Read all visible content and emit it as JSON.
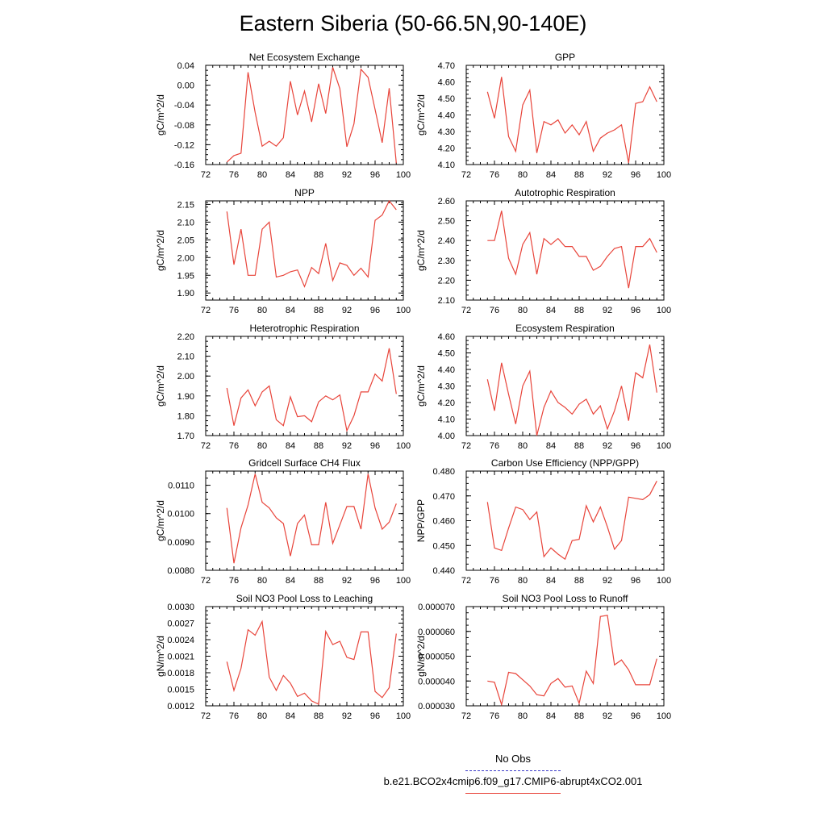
{
  "title": "Eastern Siberia (50-66.5N,90-140E)",
  "legend": {
    "obs_label": "No Obs",
    "obs_color": "#3b3bc8",
    "run_label": "b.e21.BCO2x4cmip6.f09_g17.CMIP6-abrupt4xCO2.001",
    "run_color": "#e8443a"
  },
  "chart_data": [
    {
      "type": "line",
      "title": "Net Ecosystem Exchange",
      "ylabel": "gC/m^2/d",
      "xlim": [
        72,
        100
      ],
      "ylim": [
        -0.16,
        0.04
      ],
      "yticks": [
        "-0.16",
        "-0.12",
        "-0.08",
        "-0.04",
        "0.00",
        "0.04"
      ],
      "xticks": [
        "72",
        "76",
        "80",
        "84",
        "88",
        "92",
        "96",
        "100"
      ],
      "x": [
        75,
        76,
        77,
        78,
        79,
        80,
        81,
        82,
        83,
        84,
        85,
        86,
        87,
        88,
        89,
        90,
        91,
        92,
        93,
        94,
        95,
        96,
        97,
        98,
        99
      ],
      "y": [
        -0.155,
        -0.142,
        -0.137,
        0.026,
        -0.055,
        -0.123,
        -0.113,
        -0.123,
        -0.106,
        0.008,
        -0.06,
        -0.012,
        -0.074,
        0.003,
        -0.057,
        0.036,
        -0.007,
        -0.124,
        -0.078,
        0.032,
        0.016,
        -0.049,
        -0.116,
        -0.006,
        -0.157
      ]
    },
    {
      "type": "line",
      "title": "GPP",
      "ylabel": "gC/m^2/d",
      "xlim": [
        72,
        100
      ],
      "ylim": [
        4.1,
        4.7
      ],
      "yticks": [
        "4.10",
        "4.20",
        "4.30",
        "4.40",
        "4.50",
        "4.60",
        "4.70"
      ],
      "xticks": [
        "72",
        "76",
        "80",
        "84",
        "88",
        "92",
        "96",
        "100"
      ],
      "x": [
        75,
        76,
        77,
        78,
        79,
        80,
        81,
        82,
        83,
        84,
        85,
        86,
        87,
        88,
        89,
        90,
        91,
        92,
        93,
        94,
        95,
        96,
        97,
        98,
        99
      ],
      "y": [
        4.54,
        4.38,
        4.63,
        4.27,
        4.18,
        4.46,
        4.55,
        4.17,
        4.36,
        4.34,
        4.37,
        4.29,
        4.34,
        4.28,
        4.36,
        4.18,
        4.26,
        4.29,
        4.31,
        4.34,
        4.11,
        4.47,
        4.48,
        4.57,
        4.48
      ]
    },
    {
      "type": "line",
      "title": "NPP",
      "ylabel": "gC/m^2/d",
      "xlim": [
        72,
        100
      ],
      "ylim": [
        1.88,
        2.16
      ],
      "yticks": [
        "1.90",
        "1.95",
        "2.00",
        "2.05",
        "2.10",
        "2.15"
      ],
      "xticks": [
        "72",
        "76",
        "80",
        "84",
        "88",
        "92",
        "96",
        "100"
      ],
      "x": [
        75,
        76,
        77,
        78,
        79,
        80,
        81,
        82,
        83,
        84,
        85,
        86,
        87,
        88,
        89,
        90,
        91,
        92,
        93,
        94,
        95,
        96,
        97,
        98,
        99
      ],
      "y": [
        2.13,
        1.98,
        2.08,
        1.95,
        1.95,
        2.08,
        2.1,
        1.945,
        1.95,
        1.96,
        1.965,
        1.918,
        1.972,
        1.955,
        2.04,
        1.935,
        1.985,
        1.978,
        1.95,
        1.97,
        1.945,
        2.105,
        2.12,
        2.16,
        2.135
      ]
    },
    {
      "type": "line",
      "title": "Autotrophic Respiration",
      "ylabel": "gC/m^2/d",
      "xlim": [
        72,
        100
      ],
      "ylim": [
        2.1,
        2.6
      ],
      "yticks": [
        "2.10",
        "2.20",
        "2.30",
        "2.40",
        "2.50",
        "2.60"
      ],
      "xticks": [
        "72",
        "76",
        "80",
        "84",
        "88",
        "92",
        "96",
        "100"
      ],
      "x": [
        75,
        76,
        77,
        78,
        79,
        80,
        81,
        82,
        83,
        84,
        85,
        86,
        87,
        88,
        89,
        90,
        91,
        92,
        93,
        94,
        95,
        96,
        97,
        98,
        99
      ],
      "y": [
        2.4,
        2.4,
        2.55,
        2.31,
        2.23,
        2.38,
        2.44,
        2.23,
        2.41,
        2.38,
        2.41,
        2.37,
        2.37,
        2.32,
        2.32,
        2.25,
        2.27,
        2.32,
        2.36,
        2.37,
        2.16,
        2.37,
        2.37,
        2.41,
        2.34
      ]
    },
    {
      "type": "line",
      "title": "Heterotrophic Respiration",
      "ylabel": "gC/m^2/d",
      "xlim": [
        72,
        100
      ],
      "ylim": [
        1.7,
        2.2
      ],
      "yticks": [
        "1.70",
        "1.80",
        "1.90",
        "2.00",
        "2.10",
        "2.20"
      ],
      "xticks": [
        "72",
        "76",
        "80",
        "84",
        "88",
        "92",
        "96",
        "100"
      ],
      "x": [
        75,
        76,
        77,
        78,
        79,
        80,
        81,
        82,
        83,
        84,
        85,
        86,
        87,
        88,
        89,
        90,
        91,
        92,
        93,
        94,
        95,
        96,
        97,
        98,
        99
      ],
      "y": [
        1.94,
        1.75,
        1.89,
        1.93,
        1.85,
        1.92,
        1.95,
        1.78,
        1.75,
        1.895,
        1.795,
        1.8,
        1.77,
        1.87,
        1.9,
        1.88,
        1.905,
        1.725,
        1.8,
        1.92,
        1.92,
        2.01,
        1.975,
        2.14,
        1.91
      ]
    },
    {
      "type": "line",
      "title": "Ecosystem Respiration",
      "ylabel": "gC/m^2/d",
      "xlim": [
        72,
        100
      ],
      "ylim": [
        4.0,
        4.6
      ],
      "yticks": [
        "4.00",
        "4.10",
        "4.20",
        "4.30",
        "4.40",
        "4.50",
        "4.60"
      ],
      "xticks": [
        "72",
        "76",
        "80",
        "84",
        "88",
        "92",
        "96",
        "100"
      ],
      "x": [
        75,
        76,
        77,
        78,
        79,
        80,
        81,
        82,
        83,
        84,
        85,
        86,
        87,
        88,
        89,
        90,
        91,
        92,
        93,
        94,
        95,
        96,
        97,
        98,
        99
      ],
      "y": [
        4.34,
        4.15,
        4.44,
        4.25,
        4.07,
        4.3,
        4.39,
        4.0,
        4.17,
        4.27,
        4.2,
        4.17,
        4.13,
        4.19,
        4.22,
        4.13,
        4.18,
        4.04,
        4.15,
        4.3,
        4.09,
        4.38,
        4.35,
        4.55,
        4.26
      ]
    },
    {
      "type": "line",
      "title": "Gridcell Surface CH4 Flux",
      "ylabel": "gC/m^2/d",
      "xlim": [
        72,
        100
      ],
      "ylim": [
        0.008,
        0.0115
      ],
      "yticks": [
        "0.0080",
        "0.0090",
        "0.0100",
        "0.0110"
      ],
      "xticks": [
        "72",
        "76",
        "80",
        "84",
        "88",
        "92",
        "96",
        "100"
      ],
      "x": [
        75,
        76,
        77,
        78,
        79,
        80,
        81,
        82,
        83,
        84,
        85,
        86,
        87,
        88,
        89,
        90,
        91,
        92,
        93,
        94,
        95,
        96,
        97,
        98,
        99
      ],
      "y": [
        0.0102,
        0.00825,
        0.0095,
        0.0103,
        0.0114,
        0.0104,
        0.0102,
        0.00985,
        0.00965,
        0.0085,
        0.00965,
        0.00995,
        0.0089,
        0.0089,
        0.0104,
        0.00895,
        0.0096,
        0.01025,
        0.01025,
        0.00945,
        0.0114,
        0.0102,
        0.00945,
        0.0097,
        0.01035
      ]
    },
    {
      "type": "line",
      "title": "Carbon Use Efficiency (NPP/GPP)",
      "ylabel": "NPP/GPP",
      "xlim": [
        72,
        100
      ],
      "ylim": [
        0.44,
        0.48
      ],
      "yticks": [
        "0.440",
        "0.450",
        "0.460",
        "0.470",
        "0.480"
      ],
      "xticks": [
        "72",
        "76",
        "80",
        "84",
        "88",
        "92",
        "96",
        "100"
      ],
      "x": [
        75,
        76,
        77,
        78,
        79,
        80,
        81,
        82,
        83,
        84,
        85,
        86,
        87,
        88,
        89,
        90,
        91,
        92,
        93,
        94,
        95,
        96,
        97,
        98,
        99
      ],
      "y": [
        0.4675,
        0.449,
        0.448,
        0.457,
        0.4655,
        0.4645,
        0.4605,
        0.4635,
        0.4455,
        0.449,
        0.4465,
        0.4445,
        0.452,
        0.4525,
        0.466,
        0.4595,
        0.4655,
        0.4575,
        0.4485,
        0.452,
        0.4695,
        0.469,
        0.4685,
        0.4705,
        0.476
      ]
    },
    {
      "type": "line",
      "title": "Soil NO3 Pool Loss to Leaching",
      "ylabel": "gN/m^2/d",
      "xlim": [
        72,
        100
      ],
      "ylim": [
        0.0012,
        0.003
      ],
      "yticks": [
        "0.0012",
        "0.0015",
        "0.0018",
        "0.0021",
        "0.0024",
        "0.0027",
        "0.0030"
      ],
      "xticks": [
        "72",
        "76",
        "80",
        "84",
        "88",
        "92",
        "96",
        "100"
      ],
      "x": [
        75,
        76,
        77,
        78,
        79,
        80,
        81,
        82,
        83,
        84,
        85,
        86,
        87,
        88,
        89,
        90,
        91,
        92,
        93,
        94,
        95,
        96,
        97,
        98,
        99
      ],
      "y": [
        0.002,
        0.00148,
        0.00188,
        0.00258,
        0.00248,
        0.00273,
        0.00172,
        0.00148,
        0.00175,
        0.00161,
        0.00137,
        0.00143,
        0.00129,
        0.00123,
        0.00255,
        0.00231,
        0.00237,
        0.00208,
        0.00204,
        0.00254,
        0.00254,
        0.00146,
        0.00135,
        0.00153,
        0.00251
      ]
    },
    {
      "type": "line",
      "title": "Soil NO3 Pool Loss to Runoff",
      "ylabel": "gN/m^2/d",
      "xlim": [
        72,
        100
      ],
      "ylim": [
        3e-05,
        7e-05
      ],
      "yticks": [
        "0.000030",
        "0.000040",
        "0.000050",
        "0.000060",
        "0.000070"
      ],
      "xticks": [
        "72",
        "76",
        "80",
        "84",
        "88",
        "92",
        "96",
        "100"
      ],
      "x": [
        75,
        76,
        77,
        78,
        79,
        80,
        81,
        82,
        83,
        84,
        85,
        86,
        87,
        88,
        89,
        90,
        91,
        92,
        93,
        94,
        95,
        96,
        97,
        98,
        99
      ],
      "y": [
        4e-05,
        3.95e-05,
        3.05e-05,
        4.35e-05,
        4.3e-05,
        4.05e-05,
        3.8e-05,
        3.45e-05,
        3.4e-05,
        3.9e-05,
        4.1e-05,
        3.75e-05,
        3.8e-05,
        3.1e-05,
        4.4e-05,
        3.9e-05,
        6.6e-05,
        6.65e-05,
        4.65e-05,
        4.85e-05,
        4.45e-05,
        3.85e-05,
        3.85e-05,
        3.85e-05,
        4.9e-05
      ]
    }
  ]
}
